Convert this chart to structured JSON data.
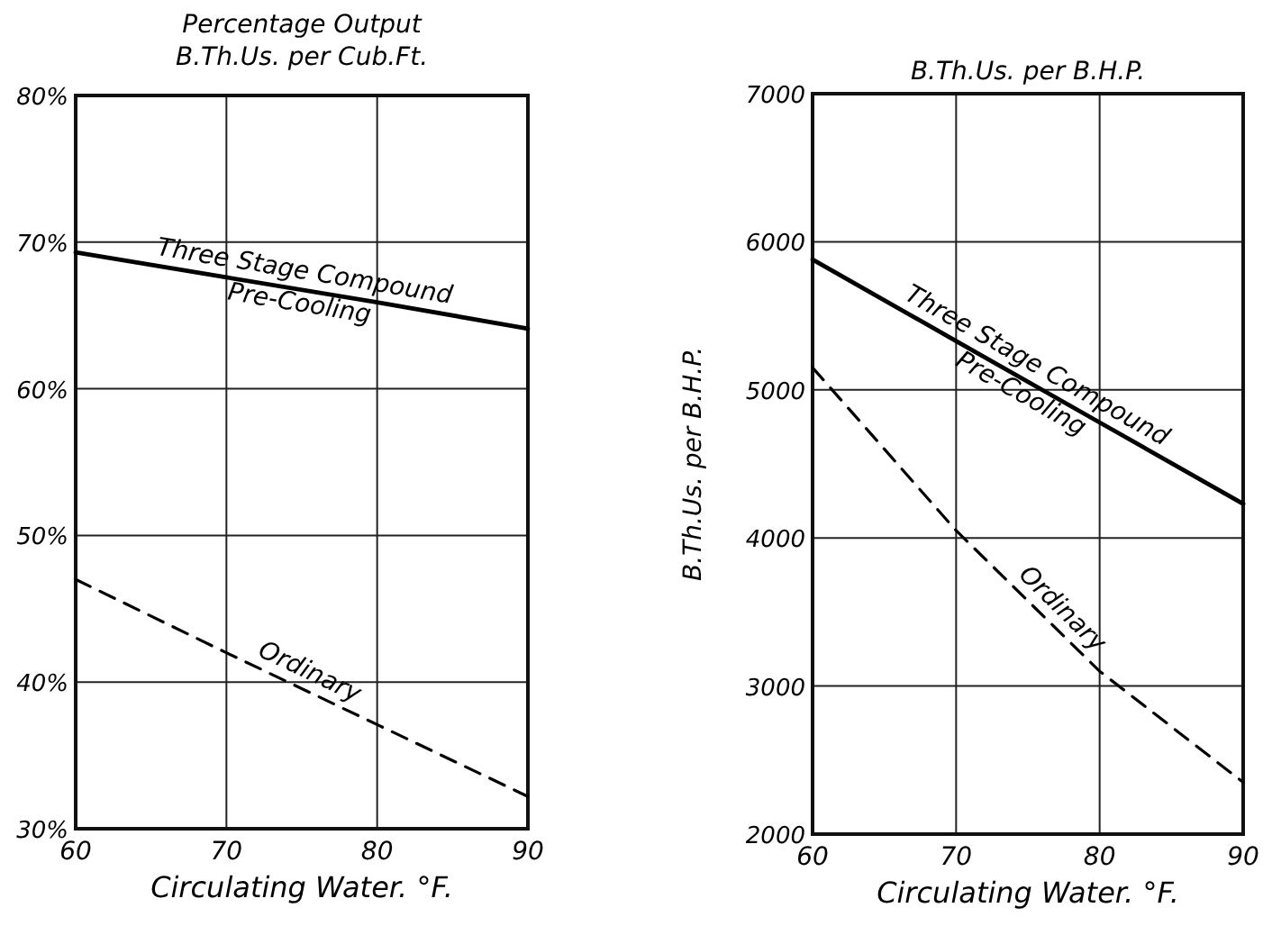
{
  "chart_data": [
    {
      "type": "line",
      "title": "Percentage Output",
      "subtitle": "B.Th.Us. per Cub.Ft.",
      "xlabel": "Circulating Water. °F.",
      "x": [
        60,
        70,
        80,
        90
      ],
      "xlim": [
        60,
        90
      ],
      "xticks": [
        60,
        70,
        80,
        90
      ],
      "ylim": [
        30,
        80
      ],
      "yticks": [
        {
          "value": 30,
          "label": "30%"
        },
        {
          "value": 40,
          "label": "40%"
        },
        {
          "value": 50,
          "label": "50%"
        },
        {
          "value": 60,
          "label": "60%"
        },
        {
          "value": 70,
          "label": "70%"
        },
        {
          "value": 80,
          "label": "80%"
        }
      ],
      "grid": true,
      "marker": "none",
      "series": [
        {
          "name": "Three Stage Compound\nPre-Cooling",
          "color": "#000000",
          "line_style": "solid",
          "values": [
            69.3,
            67.6,
            65.9,
            64.1
          ]
        },
        {
          "name": "Ordinary",
          "color": "#000000",
          "line_style": "dashed",
          "values": [
            47,
            42,
            37.1,
            32.2
          ]
        }
      ]
    },
    {
      "type": "line",
      "title": "B.Th.Us. per B.H.P.",
      "ylabel": "B.Th.Us. per B.H.P.",
      "xlabel": "Circulating Water. °F.",
      "x": [
        60,
        70,
        80,
        90
      ],
      "xlim": [
        60,
        90
      ],
      "xticks": [
        60,
        70,
        80,
        90
      ],
      "ylim": [
        2000,
        7000
      ],
      "yticks": [
        2000,
        3000,
        4000,
        5000,
        6000,
        7000
      ],
      "grid": true,
      "marker": "none",
      "series": [
        {
          "name": "Three Stage Compound\nPre-Cooling",
          "color": "#000000",
          "line_style": "solid",
          "values": [
            5880,
            5330,
            4780,
            4230
          ]
        },
        {
          "name": "Ordinary",
          "color": "#000000",
          "line_style": "dashed",
          "values": [
            5150,
            4050,
            3100,
            2350
          ]
        }
      ]
    }
  ]
}
